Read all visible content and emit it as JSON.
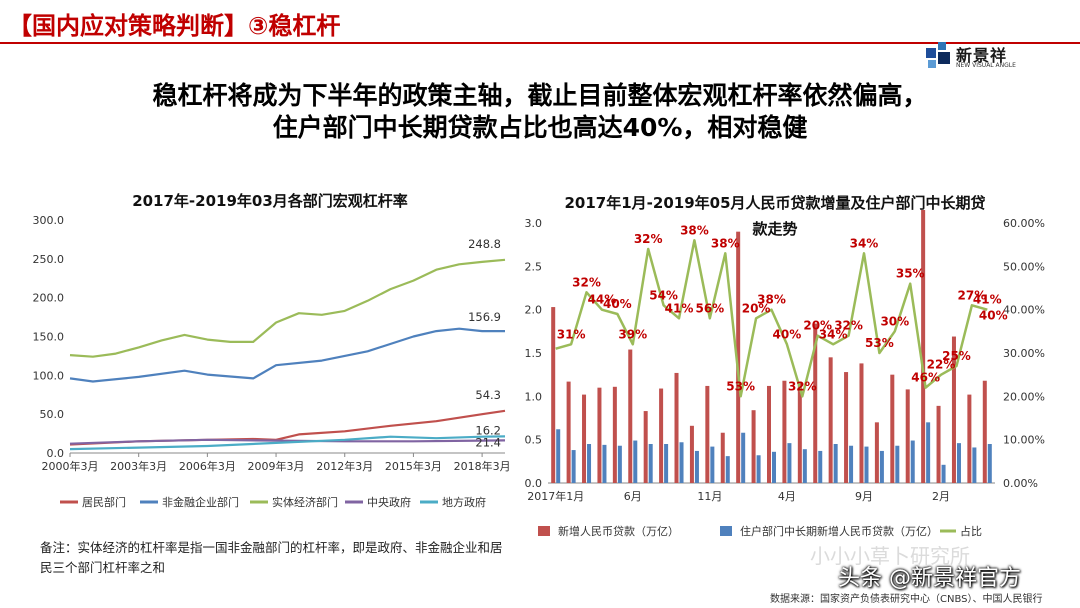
{
  "header": {
    "title": "【国内应对策略判断】③稳杠杆"
  },
  "logo": {
    "name": "新景祥",
    "sub": "NEW VISUAL ANGLE"
  },
  "headline": {
    "line1": "稳杠杆将成为下半年的政策主轴，截止目前整体宏观杠杆率依然偏高，",
    "line2": "住户部门中长期贷款占比也高达40%，相对稳健"
  },
  "footnote": {
    "text": "备注：实体经济的杠杆率是指一国非金融部门的杠杆率，即是政府、非金融企业和居民三个部门杠杆率之和"
  },
  "watermark": {
    "faint": "小小小草卜研究所",
    "main": "头条 @新景祥官方"
  },
  "source": {
    "text": "数据来源：国家资产负债表研究中心（CNBS）、中国人民银行"
  },
  "chart_data": [
    {
      "type": "line",
      "title": "2017年-2019年03月各部门宏观杠杆率",
      "x_ticks": [
        "2000年3月",
        "2003年3月",
        "2006年3月",
        "2009年3月",
        "2012年3月",
        "2015年3月",
        "2018年3月"
      ],
      "ylim": [
        0,
        300
      ],
      "y_ticks": [
        "0.0",
        "50.0",
        "100.0",
        "150.0",
        "200.0",
        "250.0",
        "300.0"
      ],
      "grid": false,
      "legend_position": "bottom",
      "end_labels": [
        "248.8",
        "156.9",
        "54.3",
        "21.4",
        "16.2"
      ],
      "x_start": 2000.17,
      "x_end": 2019.17,
      "series": [
        {
          "name": "居民部门",
          "color": "#c0504d",
          "x": [
            2000.17,
            2003.17,
            2006.17,
            2008.17,
            2009.17,
            2010.17,
            2012.17,
            2014.17,
            2016.17,
            2018.17,
            2019.17
          ],
          "values": [
            11,
            15,
            17,
            18,
            17,
            24,
            28,
            35,
            41,
            50,
            54.3
          ]
        },
        {
          "name": "非金融企业部门",
          "color": "#4f81bd",
          "x": [
            2000.17,
            2001.17,
            2003.17,
            2005.17,
            2006.17,
            2008.17,
            2009.17,
            2011.17,
            2013.17,
            2015.17,
            2016.17,
            2017.17,
            2018.17,
            2019.17
          ],
          "values": [
            96,
            92,
            98,
            106,
            101,
            96,
            113,
            119,
            131,
            150,
            157,
            160,
            157,
            156.9
          ]
        },
        {
          "name": "实体经济部门",
          "color": "#9bbb59",
          "x": [
            2000.17,
            2001.17,
            2002.17,
            2003.17,
            2004.17,
            2005.17,
            2006.17,
            2007.17,
            2008.17,
            2009.17,
            2010.17,
            2011.17,
            2012.17,
            2013.17,
            2014.17,
            2015.17,
            2016.17,
            2017.17,
            2018.17,
            2019.17
          ],
          "values": [
            126,
            124,
            128,
            136,
            145,
            152,
            146,
            143,
            143,
            168,
            180,
            178,
            183,
            196,
            211,
            222,
            236,
            243,
            246,
            248.8
          ]
        },
        {
          "name": "中央政府",
          "color": "#8064a2",
          "x": [
            2000.17,
            2003.17,
            2006.17,
            2009.17,
            2012.17,
            2015.17,
            2018.17,
            2019.17
          ],
          "values": [
            12,
            15,
            17,
            16,
            15,
            15,
            16,
            16.2
          ]
        },
        {
          "name": "地方政府",
          "color": "#4bacc6",
          "x": [
            2000.17,
            2003.17,
            2006.17,
            2009.17,
            2012.17,
            2014.17,
            2016.17,
            2018.17,
            2019.17
          ],
          "values": [
            5,
            7,
            9,
            13,
            17,
            21,
            19,
            21,
            21.4
          ]
        }
      ]
    },
    {
      "type": "bar",
      "title": "2017年1月-2019年05月人民币贷款增量及住户部门中长期贷款走势",
      "categories": [
        "2017年1月",
        "2月",
        "3月",
        "4月",
        "5月",
        "6月",
        "7月",
        "8月",
        "9月",
        "10月",
        "11月",
        "12月",
        "2018年1月",
        "2月",
        "3月",
        "4月",
        "5月",
        "6月",
        "7月",
        "8月",
        "9月",
        "10月",
        "11月",
        "12月",
        "2019年1月",
        "2月",
        "3月",
        "4月",
        "5月"
      ],
      "x_tick_labels": [
        "2017年1月",
        "6月",
        "11月",
        "4月",
        "9月",
        "2月"
      ],
      "x_tick_indices": [
        0,
        5,
        10,
        15,
        20,
        25
      ],
      "ylim_left": [
        0,
        3.0
      ],
      "y_ticks_left": [
        "0.0",
        "0.5",
        "1.0",
        "1.5",
        "2.0",
        "2.5",
        "3.0"
      ],
      "ylim_right": [
        0,
        60
      ],
      "y_ticks_right": [
        "0.00%",
        "10.00%",
        "20.00%",
        "30.00%",
        "40.00%",
        "50.00%",
        "60.00%"
      ],
      "legend_position": "bottom",
      "series": [
        {
          "name": "新增人民币贷款（万亿）",
          "axis": "left",
          "color": "#c0504d",
          "values": [
            2.03,
            1.17,
            1.02,
            1.1,
            1.11,
            1.54,
            0.83,
            1.09,
            1.27,
            0.66,
            1.12,
            0.58,
            2.9,
            0.84,
            1.12,
            1.18,
            1.15,
            1.84,
            1.45,
            1.28,
            1.38,
            0.7,
            1.25,
            1.08,
            3.23,
            0.89,
            1.69,
            1.02,
            1.18
          ]
        },
        {
          "name": "住户部门中长期新增人民币贷款（万亿）",
          "axis": "left",
          "color": "#4f81bd",
          "values": [
            0.62,
            0.38,
            0.45,
            0.44,
            0.43,
            0.49,
            0.45,
            0.45,
            0.47,
            0.37,
            0.42,
            0.31,
            0.58,
            0.32,
            0.36,
            0.46,
            0.39,
            0.37,
            0.45,
            0.43,
            0.42,
            0.37,
            0.43,
            0.49,
            0.7,
            0.21,
            0.46,
            0.41,
            0.45
          ]
        },
        {
          "name": "占比",
          "axis": "right",
          "color": "#9bbb59",
          "values": [
            31,
            32,
            44,
            40,
            39,
            32,
            54,
            41,
            38,
            56,
            38,
            53,
            20,
            38,
            40,
            32,
            20,
            34,
            32,
            34,
            53,
            30,
            35,
            46,
            22,
            25,
            27,
            41,
            40
          ]
        }
      ],
      "data_labels": [
        {
          "i": 1,
          "text": "31%"
        },
        {
          "i": 2,
          "text": "32%"
        },
        {
          "i": 3,
          "text": "44%"
        },
        {
          "i": 4,
          "text": "40%"
        },
        {
          "i": 5,
          "text": "39%"
        },
        {
          "i": 6,
          "text": "32%"
        },
        {
          "i": 7,
          "text": "54%"
        },
        {
          "i": 8,
          "text": "41%"
        },
        {
          "i": 9,
          "text": "38%"
        },
        {
          "i": 10,
          "text": "56%"
        },
        {
          "i": 11,
          "text": "38%"
        },
        {
          "i": 12,
          "text": "53%"
        },
        {
          "i": 13,
          "text": "20%"
        },
        {
          "i": 14,
          "text": "38%"
        },
        {
          "i": 15,
          "text": "40%"
        },
        {
          "i": 16,
          "text": "32%"
        },
        {
          "i": 17,
          "text": "20%"
        },
        {
          "i": 18,
          "text": "34%"
        },
        {
          "i": 19,
          "text": "32%"
        },
        {
          "i": 20,
          "text": "34%"
        },
        {
          "i": 21,
          "text": "53%"
        },
        {
          "i": 22,
          "text": "30%"
        },
        {
          "i": 23,
          "text": "35%"
        },
        {
          "i": 24,
          "text": "46%"
        },
        {
          "i": 25,
          "text": "22%"
        },
        {
          "i": 26,
          "text": "25%"
        },
        {
          "i": 27,
          "text": "27%"
        },
        {
          "i": 28,
          "text": "41%"
        },
        {
          "i": 28,
          "text": "40%"
        }
      ]
    }
  ]
}
